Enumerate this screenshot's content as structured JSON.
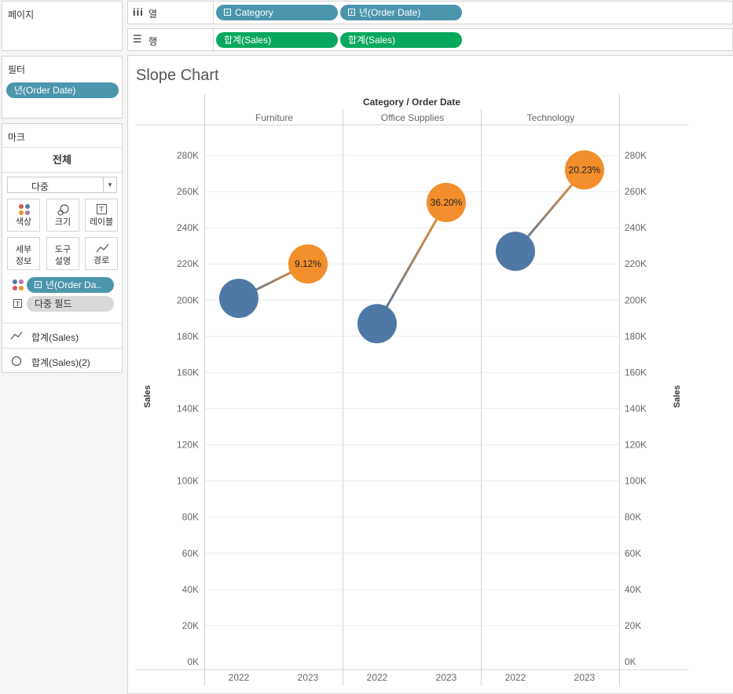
{
  "shelves": {
    "pages_label": "페이지",
    "columns_label": "열",
    "rows_label": "행",
    "columns_pills": [
      "Category",
      "년(Order Date)"
    ],
    "rows_pills": [
      "합계(Sales)",
      "합계(Sales)"
    ]
  },
  "filters": {
    "title": "필터",
    "pills": [
      "년(Order Date)"
    ]
  },
  "marks": {
    "title": "마크",
    "all_tab": "전체",
    "mark_type": "다중",
    "buttons": {
      "color": "색상",
      "size": "크기",
      "label": "레이블",
      "detail_1": "세부",
      "detail_2": "정보",
      "tooltip_1": "도구",
      "tooltip_2": "설명",
      "path": "경로"
    },
    "label_icon_char": "T",
    "fields": {
      "color_field": "년(Order Da..",
      "label_field": "다중 필드"
    },
    "sub_marks": [
      "합계(Sales)",
      "합계(Sales)(2)"
    ]
  },
  "view": {
    "title": "Slope Chart",
    "column_header": "Category / Order Date",
    "left_axis_title": "Sales",
    "right_axis_title": "Sales"
  },
  "colors": {
    "pill_blue": "#4b96ad",
    "pill_green": "#0aa85f",
    "dot_2022": "#4e79a7",
    "dot_2023": "#f28e2b"
  },
  "chart_data": {
    "type": "scatter",
    "categories": [
      "Furniture",
      "Office Supplies",
      "Technology"
    ],
    "years": [
      "2022",
      "2023"
    ],
    "series": [
      {
        "name": "2022",
        "values": [
          201000,
          187000,
          227000
        ]
      },
      {
        "name": "2023",
        "values": [
          220000,
          254000,
          272000
        ]
      }
    ],
    "labels_2023": [
      "9.12%",
      "36.20%",
      "20.23%"
    ],
    "ylabel": "Sales",
    "xlabel": "Category / Order Date",
    "ylim": [
      0,
      290000
    ],
    "yticks": [
      0,
      20000,
      40000,
      60000,
      80000,
      100000,
      120000,
      140000,
      160000,
      180000,
      200000,
      220000,
      240000,
      260000,
      280000
    ],
    "ytick_labels": [
      "0K",
      "20K",
      "40K",
      "60K",
      "80K",
      "100K",
      "120K",
      "140K",
      "160K",
      "180K",
      "200K",
      "220K",
      "240K",
      "260K",
      "280K"
    ],
    "grid": true
  }
}
